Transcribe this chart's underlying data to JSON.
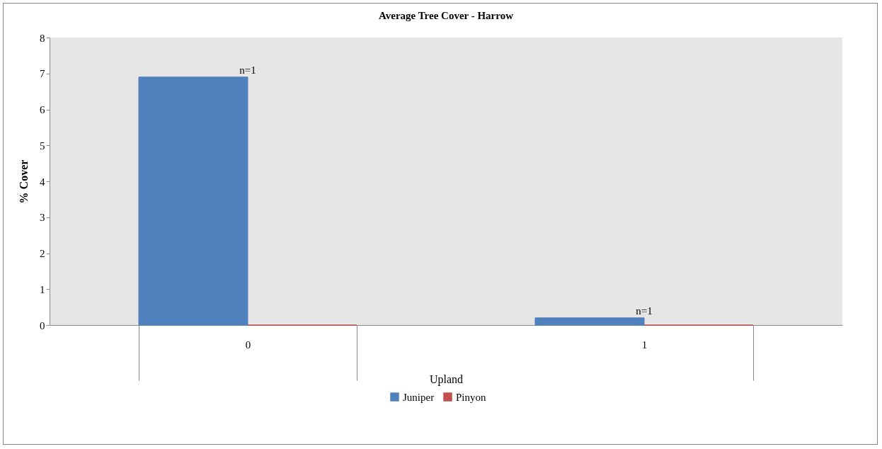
{
  "chart_data": {
    "type": "bar",
    "title": "Average Tree Cover - Harrow",
    "xlabel": "Upland",
    "ylabel": "% Cover",
    "categories": [
      "0",
      "1"
    ],
    "series": [
      {
        "name": "Juniper",
        "color": "#4f81bd",
        "values": [
          6.9,
          0.2
        ]
      },
      {
        "name": "Pinyon",
        "color": "#c0504d",
        "values": [
          0,
          0
        ]
      }
    ],
    "annotations": [
      {
        "text": "n=1",
        "x": "0",
        "y": 6.9
      },
      {
        "text": "n=1",
        "x": "1",
        "y": 0.2
      }
    ],
    "ylim": [
      0,
      8
    ],
    "yticks": [
      0,
      1,
      2,
      3,
      4,
      5,
      6,
      7,
      8
    ],
    "grid": false,
    "legend": "bottom"
  }
}
